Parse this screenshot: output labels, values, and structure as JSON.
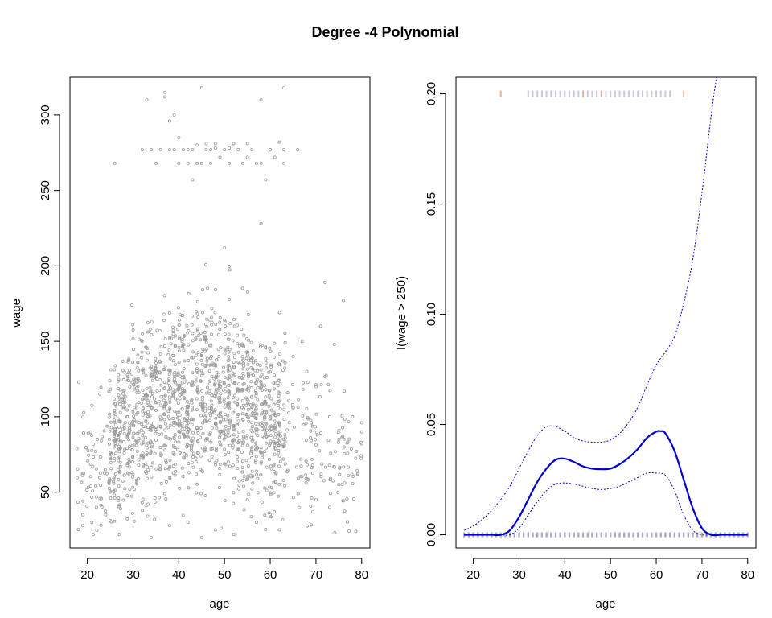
{
  "title": "Degree -4 Polynomial",
  "colors": {
    "points": "#9a9a9a",
    "fit_line": "#0000cc",
    "band_line": "#0000cc",
    "rug_high": "#e0b49a",
    "rug_high_alt": "#c9c9d9",
    "rug_low": "#aaaac0"
  },
  "chart_data": [
    {
      "type": "scatter",
      "title": "",
      "xlabel": "age",
      "ylabel": "wage",
      "xlim": [
        16.2,
        81.8
      ],
      "ylim": [
        13,
        325
      ],
      "xticks": [
        20,
        30,
        40,
        50,
        60,
        70,
        80
      ],
      "yticks": [
        50,
        100,
        150,
        200,
        250,
        300
      ],
      "grid": false,
      "legend": "none",
      "series": [
        {
          "points": [
            [
              26,
              268
            ],
            [
              33,
              310
            ],
            [
              34,
              277
            ],
            [
              35,
              268
            ],
            [
              36,
              277
            ],
            [
              37,
              312
            ],
            [
              37,
              315
            ],
            [
              38,
              277
            ],
            [
              38,
              296
            ],
            [
              39,
              300
            ],
            [
              39,
              277
            ],
            [
              40,
              268
            ],
            [
              40,
              285
            ],
            [
              41,
              277
            ],
            [
              42,
              277
            ],
            [
              42,
              268
            ],
            [
              43,
              257
            ],
            [
              43,
              277
            ],
            [
              44,
              280
            ],
            [
              44,
              268
            ],
            [
              45,
              268
            ],
            [
              45,
              318
            ],
            [
              46,
              277
            ],
            [
              46,
              281
            ],
            [
              47,
              268
            ],
            [
              47,
              277
            ],
            [
              48,
              281
            ],
            [
              48,
              278
            ],
            [
              49,
              272
            ],
            [
              50,
              277
            ],
            [
              51,
              268
            ],
            [
              51,
              278
            ],
            [
              52,
              281
            ],
            [
              53,
              277
            ],
            [
              54,
              268
            ],
            [
              55,
              272
            ],
            [
              55,
              281
            ],
            [
              56,
              277
            ],
            [
              57,
              268
            ],
            [
              58,
              310
            ],
            [
              58,
              268
            ],
            [
              59,
              257
            ],
            [
              60,
              277
            ],
            [
              61,
              272
            ],
            [
              62,
              282
            ],
            [
              63,
              268
            ],
            [
              63,
              318
            ],
            [
              63,
              277
            ],
            [
              66,
              277
            ],
            [
              32,
              277
            ],
            [
              58,
              228
            ],
            [
              50,
              212
            ],
            [
              74,
              148
            ],
            [
              76,
              177
            ],
            [
              72,
              189
            ],
            [
              67,
              150
            ],
            [
              71,
              160
            ],
            [
              65,
              140
            ],
            [
              68,
              130
            ],
            [
              70,
              120
            ],
            [
              73,
              100
            ],
            [
              78,
              100
            ],
            [
              80,
              82
            ],
            [
              80,
              90
            ],
            [
              80,
              96
            ],
            [
              75,
              85
            ],
            [
              73,
              40
            ],
            [
              70,
              45
            ],
            [
              75,
              55
            ],
            [
              19,
              28
            ],
            [
              19,
              35
            ],
            [
              21,
              30
            ],
            [
              22,
              40
            ],
            [
              23,
              28
            ],
            [
              24,
              35
            ],
            [
              25,
              50
            ],
            [
              27,
              22
            ],
            [
              34,
              20
            ],
            [
              45,
              20
            ],
            [
              52,
              22
            ],
            [
              55,
              45
            ],
            [
              62,
              25
            ],
            [
              60,
              35
            ],
            [
              57,
              30
            ],
            [
              48,
              25
            ],
            [
              38,
              28
            ],
            [
              42,
              30
            ]
          ]
        }
      ],
      "cloud": {
        "x_range": [
          18,
          80
        ],
        "count": 1700,
        "note": "dense band of wages between roughly 40 and 200 across ages 18-80"
      }
    },
    {
      "type": "line",
      "title": "",
      "xlabel": "age",
      "ylabel": "I(wage > 250)",
      "xlim": [
        16.2,
        81.8
      ],
      "ylim": [
        -0.006,
        0.2075
      ],
      "xticks": [
        20,
        30,
        40,
        50,
        60,
        70,
        80
      ],
      "yticks": [
        0.0,
        0.05,
        0.1,
        0.15,
        0.2
      ],
      "ytick_labels": [
        "0.00",
        "0.05",
        "0.10",
        "0.15",
        "0.20"
      ],
      "grid": false,
      "legend": "none",
      "series": [
        {
          "role": "fit",
          "x": [
            18,
            20,
            22,
            24,
            26,
            28,
            30,
            32,
            34,
            36,
            38,
            40,
            42,
            44,
            46,
            48,
            50,
            52,
            54,
            56,
            58,
            60,
            61,
            62,
            64,
            66,
            68,
            70,
            72,
            74,
            76,
            78,
            80
          ],
          "y": [
            0.0,
            0.0,
            0.0,
            0.0,
            0.0,
            0.002,
            0.008,
            0.016,
            0.024,
            0.03,
            0.034,
            0.0345,
            0.033,
            0.031,
            0.03,
            0.0297,
            0.03,
            0.032,
            0.035,
            0.039,
            0.044,
            0.0468,
            0.047,
            0.046,
            0.038,
            0.025,
            0.012,
            0.003,
            0.0,
            0.0,
            0.0,
            0.0,
            0.0
          ]
        },
        {
          "role": "upper_band",
          "x": [
            18,
            20,
            22,
            24,
            26,
            28,
            30,
            32,
            34,
            36,
            38,
            40,
            42,
            44,
            46,
            48,
            50,
            52,
            54,
            56,
            58,
            60,
            62,
            64,
            66,
            68,
            70,
            72,
            73.2
          ],
          "y": [
            0.002,
            0.004,
            0.007,
            0.011,
            0.016,
            0.022,
            0.03,
            0.038,
            0.045,
            0.049,
            0.049,
            0.047,
            0.044,
            0.0425,
            0.042,
            0.042,
            0.043,
            0.046,
            0.051,
            0.058,
            0.068,
            0.077,
            0.083,
            0.09,
            0.105,
            0.125,
            0.155,
            0.19,
            0.208
          ]
        },
        {
          "role": "lower_band",
          "x": [
            18,
            20,
            22,
            24,
            26,
            28,
            30,
            32,
            34,
            36,
            38,
            40,
            42,
            44,
            46,
            48,
            50,
            52,
            54,
            56,
            58,
            60,
            62,
            64,
            66,
            68,
            70,
            72,
            74,
            76,
            78,
            80
          ],
          "y": [
            0.0,
            0.0,
            0.0,
            0.0,
            0.0,
            0.0,
            0.003,
            0.009,
            0.015,
            0.02,
            0.023,
            0.0235,
            0.023,
            0.022,
            0.021,
            0.0205,
            0.021,
            0.022,
            0.024,
            0.026,
            0.028,
            0.028,
            0.027,
            0.02,
            0.009,
            0.002,
            0.0,
            0.0,
            0.0,
            0.0,
            0.0,
            0.0
          ]
        }
      ],
      "rug": {
        "high_y": 0.2,
        "high_x": [
          26,
          32,
          33,
          34,
          35,
          36,
          37,
          38,
          39,
          40,
          41,
          42,
          43,
          44,
          45,
          46,
          47,
          48,
          49,
          50,
          51,
          52,
          53,
          54,
          55,
          56,
          57,
          58,
          59,
          60,
          61,
          62,
          63,
          66
        ],
        "low_y": 0.0,
        "low_x_range": [
          18,
          80
        ]
      }
    }
  ]
}
